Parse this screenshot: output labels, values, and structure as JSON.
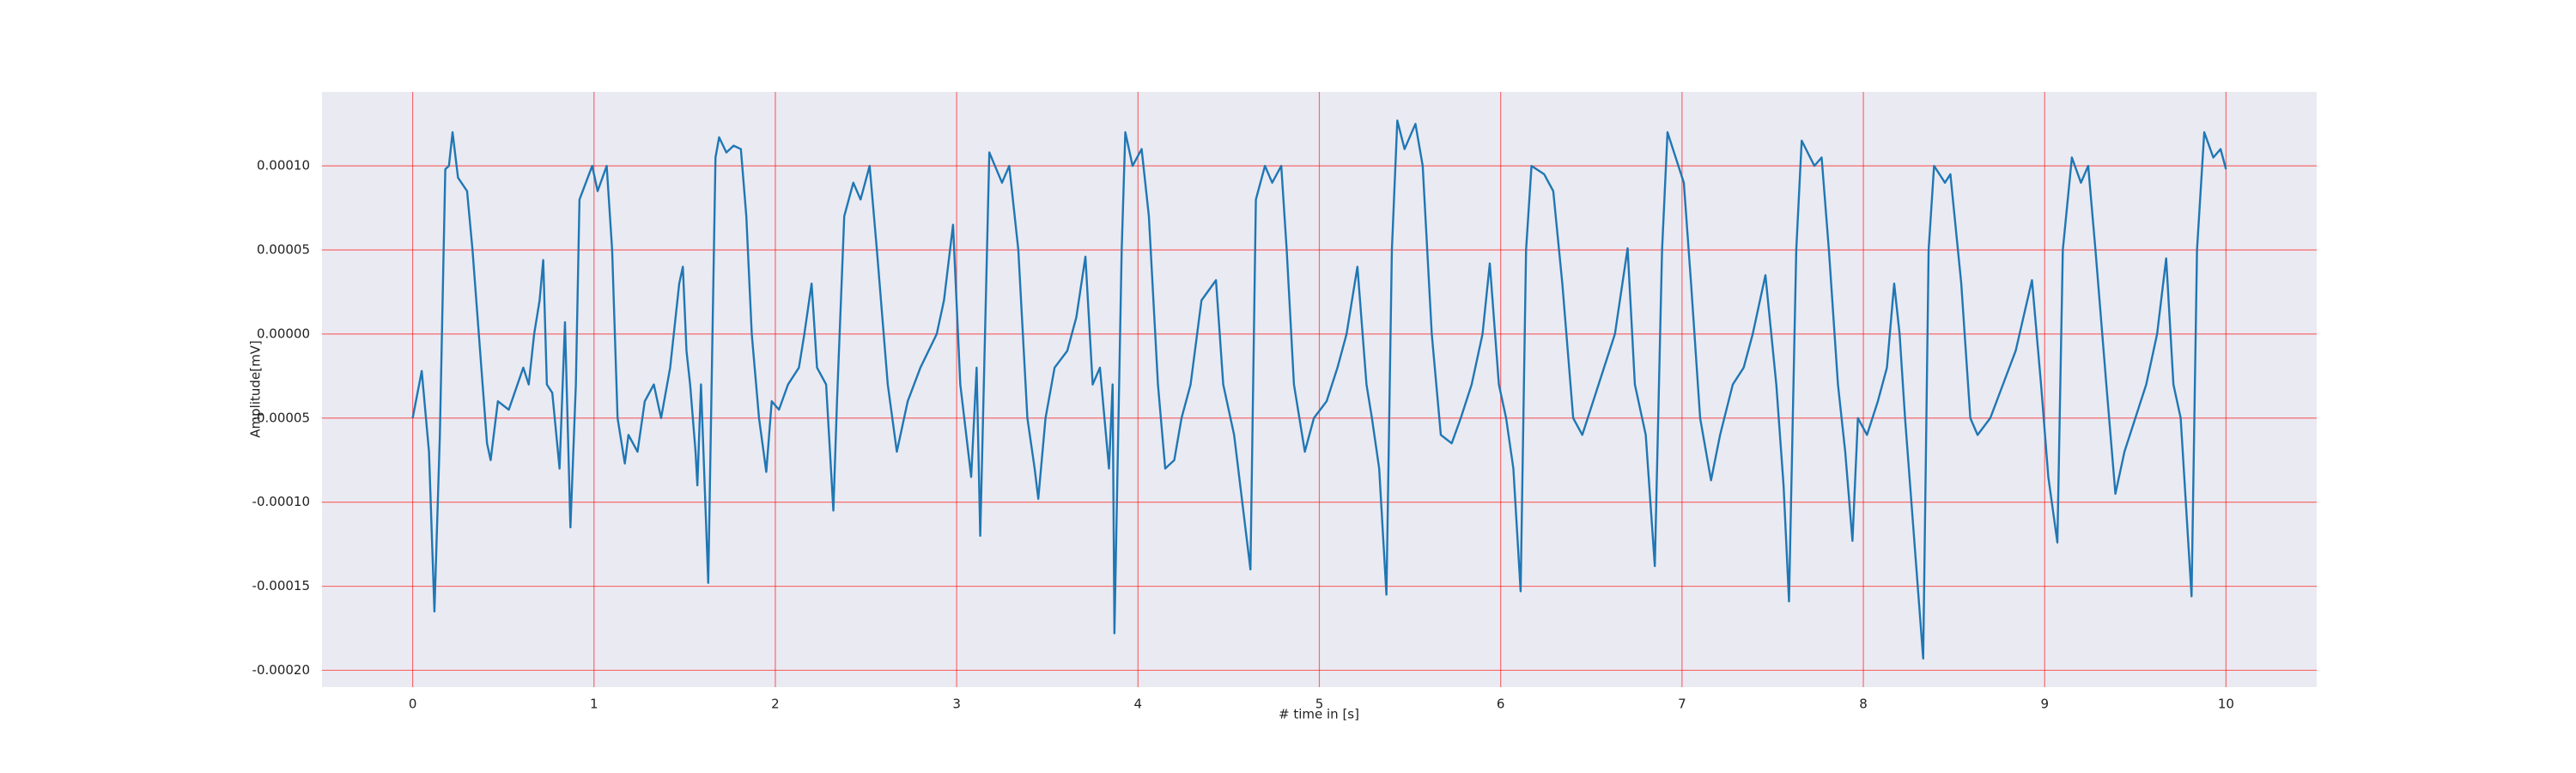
{
  "chart_data": {
    "type": "line",
    "xlabel": "# time in [s]",
    "ylabel": "Amplitude[mV]",
    "color": "#1f77b4",
    "grid": true,
    "grid_color": "#ff0000",
    "background": "#eaeaf2",
    "xlim": [
      -0.5,
      10.5
    ],
    "xticks": [
      0,
      1,
      2,
      3,
      4,
      5,
      6,
      7,
      8,
      9,
      10
    ],
    "ylim": [
      -0.00021,
      0.000144
    ],
    "yticks": [
      {
        "value": -0.0002,
        "label": "-0.00020"
      },
      {
        "value": -0.00015,
        "label": "-0.00015"
      },
      {
        "value": -0.0001,
        "label": "-0.00010"
      },
      {
        "value": -5e-05,
        "label": "-0.00005"
      },
      {
        "value": 0,
        "label": "0.00000"
      },
      {
        "value": 5e-05,
        "label": "0.00005"
      },
      {
        "value": 0.0001,
        "label": "0.00010"
      }
    ],
    "x": [
      0,
      0.05,
      0.09,
      0.12,
      0.15,
      0.18,
      0.2,
      0.22,
      0.25,
      0.3,
      0.33,
      0.41,
      0.43,
      0.47,
      0.53,
      0.61,
      0.64,
      0.67,
      0.7,
      0.72,
      0.74,
      0.77,
      0.81,
      0.84,
      0.87,
      0.9,
      0.92,
      0.99,
      1.02,
      1.07,
      1.1,
      1.13,
      1.17,
      1.19,
      1.24,
      1.28,
      1.33,
      1.37,
      1.42,
      1.44,
      1.47,
      1.49,
      1.51,
      1.53,
      1.56,
      1.57,
      1.59,
      1.63,
      1.67,
      1.69,
      1.73,
      1.77,
      1.81,
      1.84,
      1.87,
      1.91,
      1.95,
      1.98,
      2.02,
      2.07,
      2.13,
      2.16,
      2.2,
      2.23,
      2.28,
      2.32,
      2.34,
      2.38,
      2.43,
      2.47,
      2.52,
      2.56,
      2.62,
      2.67,
      2.73,
      2.8,
      2.89,
      2.93,
      2.98,
      3.02,
      3.08,
      3.11,
      3.13,
      3.18,
      3.25,
      3.29,
      3.34,
      3.39,
      3.43,
      3.45,
      3.49,
      3.54,
      3.61,
      3.66,
      3.71,
      3.75,
      3.79,
      3.84,
      3.86,
      3.87,
      3.91,
      3.93,
      3.97,
      4.02,
      4.06,
      4.11,
      4.15,
      4.2,
      4.24,
      4.29,
      4.35,
      4.43,
      4.47,
      4.53,
      4.62,
      4.65,
      4.7,
      4.74,
      4.79,
      4.82,
      4.86,
      4.92,
      4.97,
      5.04,
      5.1,
      5.15,
      5.21,
      5.26,
      5.29,
      5.33,
      5.37,
      5.4,
      5.43,
      5.47,
      5.53,
      5.57,
      5.62,
      5.67,
      5.73,
      5.78,
      5.84,
      5.9,
      5.94,
      5.99,
      6.03,
      6.07,
      6.11,
      6.14,
      6.17,
      6.24,
      6.29,
      6.34,
      6.4,
      6.45,
      6.51,
      6.57,
      6.63,
      6.7,
      6.74,
      6.8,
      6.85,
      6.89,
      6.92,
      6.98,
      7.01,
      7.05,
      7.1,
      7.16,
      7.21,
      7.28,
      7.34,
      7.39,
      7.46,
      7.52,
      7.56,
      7.59,
      7.63,
      7.66,
      7.73,
      7.77,
      7.81,
      7.86,
      7.9,
      7.94,
      7.97,
      8.02,
      8.08,
      8.13,
      8.17,
      8.2,
      8.23,
      8.33,
      8.36,
      8.39,
      8.45,
      8.48,
      8.54,
      8.59,
      8.63,
      8.7,
      8.77,
      8.84,
      8.93,
      8.98,
      9.02,
      9.07,
      9.1,
      9.15,
      9.2,
      9.24,
      9.28,
      9.34,
      9.39,
      9.44,
      9.5,
      9.56,
      9.62,
      9.67,
      9.71,
      9.75,
      9.81,
      9.84,
      9.88,
      9.93,
      9.97,
      10
    ],
    "values": [
      -5e-05,
      -2.2e-05,
      -7e-05,
      -0.000165,
      -6e-05,
      9.8e-05,
      0.0001,
      0.00012,
      9.3e-05,
      8.5e-05,
      5e-05,
      -6.5e-05,
      -7.5e-05,
      -4e-05,
      -4.5e-05,
      -2e-05,
      -3e-05,
      0,
      2e-05,
      4.4e-05,
      -3e-05,
      -3.5e-05,
      -8e-05,
      7e-06,
      -0.000115,
      -3e-05,
      8e-05,
      0.0001,
      8.5e-05,
      0.0001,
      5e-05,
      -5e-05,
      -7.7e-05,
      -6e-05,
      -7e-05,
      -4e-05,
      -3e-05,
      -5e-05,
      -2e-05,
      0,
      3e-05,
      4e-05,
      -1e-05,
      -3e-05,
      -7e-05,
      -9e-05,
      -3e-05,
      -0.000148,
      0.000105,
      0.000117,
      0.000108,
      0.000112,
      0.00011,
      7e-05,
      0,
      -5e-05,
      -8.2e-05,
      -4e-05,
      -4.5e-05,
      -3e-05,
      -2e-05,
      0,
      3e-05,
      -2e-05,
      -3e-05,
      -0.000105,
      -4e-05,
      7e-05,
      9e-05,
      8e-05,
      0.0001,
      5e-05,
      -3e-05,
      -7e-05,
      -4e-05,
      -2e-05,
      0,
      2e-05,
      6.5e-05,
      -3e-05,
      -8.5e-05,
      -2e-05,
      -0.00012,
      0.000108,
      9e-05,
      0.0001,
      5e-05,
      -5e-05,
      -8e-05,
      -9.8e-05,
      -5e-05,
      -2e-05,
      -1e-05,
      1e-05,
      4.6e-05,
      -3e-05,
      -2e-05,
      -8e-05,
      -3e-05,
      -0.000178,
      5e-05,
      0.00012,
      0.0001,
      0.00011,
      7e-05,
      -3e-05,
      -8e-05,
      -7.5e-05,
      -5e-05,
      -3e-05,
      2e-05,
      3.2e-05,
      -3e-05,
      -6e-05,
      -0.00014,
      8e-05,
      0.0001,
      9e-05,
      0.0001,
      5e-05,
      -3e-05,
      -7e-05,
      -5e-05,
      -4e-05,
      -2e-05,
      0,
      4e-05,
      -3e-05,
      -5e-05,
      -8e-05,
      -0.000155,
      5e-05,
      0.000127,
      0.00011,
      0.000125,
      0.0001,
      0,
      -6e-05,
      -6.5e-05,
      -5e-05,
      -3e-05,
      0,
      4.2e-05,
      -3e-05,
      -5e-05,
      -8e-05,
      -0.000153,
      5e-05,
      0.0001,
      9.5e-05,
      8.5e-05,
      3e-05,
      -5e-05,
      -6e-05,
      -4e-05,
      -2e-05,
      0,
      5.1e-05,
      -3e-05,
      -6e-05,
      -0.000138,
      5e-05,
      0.00012,
      0.0001,
      9e-05,
      3e-05,
      -5e-05,
      -8.7e-05,
      -6e-05,
      -3e-05,
      -2e-05,
      0,
      3.5e-05,
      -3e-05,
      -9e-05,
      -0.000159,
      5e-05,
      0.000115,
      0.0001,
      0.000105,
      5e-05,
      -3e-05,
      -7e-05,
      -0.000123,
      -5e-05,
      -6e-05,
      -4e-05,
      -2e-05,
      3e-05,
      0,
      -5e-05,
      -0.000193,
      5e-05,
      0.0001,
      9e-05,
      9.5e-05,
      3e-05,
      -5e-05,
      -6e-05,
      -5e-05,
      -3e-05,
      -1e-05,
      3.2e-05,
      -3e-05,
      -8.5e-05,
      -0.000124,
      5e-05,
      0.000105,
      9e-05,
      0.0001,
      5e-05,
      -3e-05,
      -9.5e-05,
      -7e-05,
      -5e-05,
      -3e-05,
      0,
      4.5e-05,
      -3e-05,
      -5e-05,
      -0.000156,
      5e-05,
      0.00012,
      0.000105,
      0.00011,
      9.8e-05
    ]
  }
}
